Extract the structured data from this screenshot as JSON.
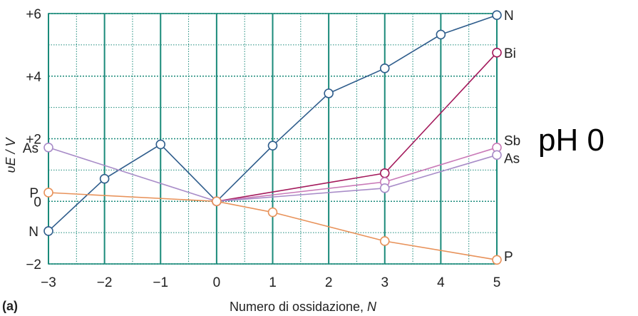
{
  "chart_data": {
    "type": "line",
    "xlabel": "Numero di ossidazione, ",
    "xlabel_var": "N",
    "ylabel": "υE / V",
    "xlim": [
      -3,
      5
    ],
    "ylim": [
      -2,
      6
    ],
    "x_ticks": [
      -3,
      -2,
      -1,
      0,
      1,
      2,
      3,
      4,
      5
    ],
    "x_tick_labels": [
      "−3",
      "−2",
      "−1",
      "0",
      "1",
      "2",
      "3",
      "4",
      "5"
    ],
    "y_ticks": [
      -2,
      0,
      2,
      4,
      6
    ],
    "y_tick_labels": [
      "−2",
      "0",
      "+2",
      "+4",
      "+6"
    ],
    "grid": true,
    "panel_label": "(a)",
    "annotation": "pH 0",
    "series": [
      {
        "name": "N",
        "color": "#2f5d8c",
        "points": [
          [
            -3,
            -0.95
          ],
          [
            -2,
            0.72
          ],
          [
            -1,
            1.82
          ],
          [
            0,
            0
          ],
          [
            1,
            1.78
          ],
          [
            2,
            3.45
          ],
          [
            3,
            4.25
          ],
          [
            4,
            5.33
          ],
          [
            5,
            5.95
          ]
        ]
      },
      {
        "name": "Bi",
        "color": "#a3195b",
        "points": [
          [
            0,
            0
          ],
          [
            3,
            0.9
          ],
          [
            5,
            4.75
          ]
        ]
      },
      {
        "name": "Sb",
        "color": "#c97ab8",
        "points": [
          [
            0,
            0
          ],
          [
            3,
            0.62
          ],
          [
            5,
            1.72
          ]
        ]
      },
      {
        "name": "As",
        "color": "#a88cc8",
        "points": [
          [
            -3,
            1.72
          ],
          [
            0,
            0
          ],
          [
            3,
            0.42
          ],
          [
            5,
            1.48
          ]
        ]
      },
      {
        "name": "P",
        "color": "#e8925a",
        "points": [
          [
            -3,
            0.28
          ],
          [
            0,
            0
          ],
          [
            1,
            -0.35
          ],
          [
            3,
            -1.27
          ],
          [
            5,
            -1.87
          ]
        ]
      }
    ],
    "end_labels": [
      {
        "text": "N",
        "x": -3,
        "y": -0.95,
        "side": "left"
      },
      {
        "text": "As",
        "x": -3,
        "y": 1.72,
        "side": "left"
      },
      {
        "text": "P",
        "x": -3,
        "y": 0.28,
        "side": "left"
      },
      {
        "text": "N",
        "x": 5,
        "y": 5.95,
        "side": "right"
      },
      {
        "text": "Bi",
        "x": 5,
        "y": 4.75,
        "side": "right"
      },
      {
        "text": "Sb",
        "x": 5,
        "y": 1.95,
        "side": "right"
      },
      {
        "text": "As",
        "x": 5,
        "y": 1.38,
        "side": "right"
      },
      {
        "text": "P",
        "x": 5,
        "y": -1.75,
        "side": "right"
      }
    ]
  }
}
